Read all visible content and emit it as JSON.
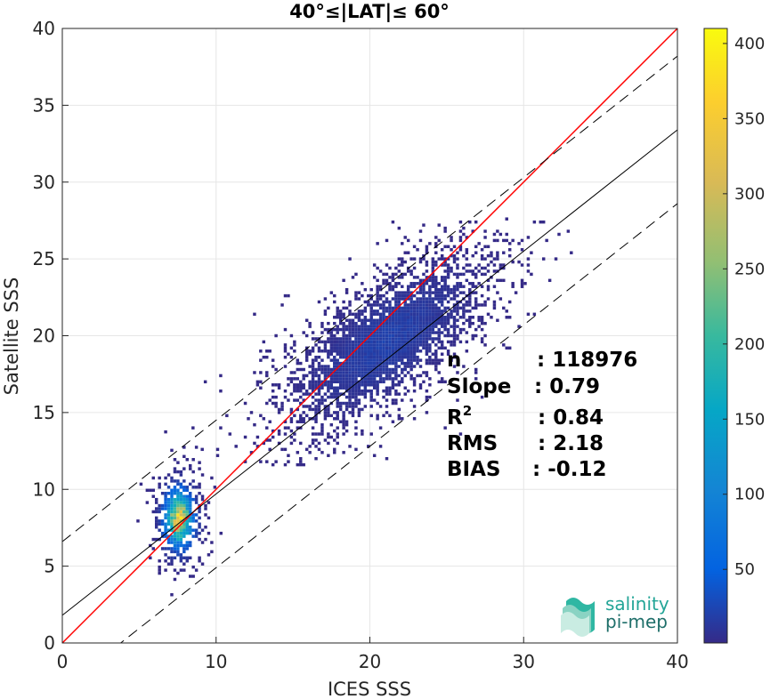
{
  "chart_data": {
    "type": "heatmap",
    "title": "40°≤|LAT|≤ 60°",
    "xlabel": "ICES SSS",
    "ylabel": "Satellite SSS",
    "xlim": [
      0,
      40
    ],
    "ylim": [
      0,
      40
    ],
    "xticks": [
      0,
      10,
      20,
      30,
      40
    ],
    "yticks": [
      0,
      5,
      10,
      15,
      20,
      25,
      30,
      35,
      40
    ],
    "grid": true,
    "colorbar": {
      "range": [
        1,
        410
      ],
      "ticks": [
        50,
        100,
        150,
        200,
        250,
        300,
        350,
        400
      ],
      "colormap": "parula"
    },
    "lines": [
      {
        "name": "one-to-one",
        "color": "#ff0000",
        "style": "solid",
        "intercept": 0,
        "slope": 1
      },
      {
        "name": "regression",
        "color": "#000000",
        "style": "solid",
        "intercept": 1.8,
        "slope": 0.79
      },
      {
        "name": "regression-plus",
        "color": "#000000",
        "style": "dashed",
        "intercept": 6.6,
        "slope": 0.79
      },
      {
        "name": "regression-minus",
        "color": "#000000",
        "style": "dashed",
        "intercept": -3.0,
        "slope": 0.79
      }
    ],
    "clusters": [
      {
        "x": 7.5,
        "y": 8.0,
        "sx": 0.9,
        "sy": 1.8,
        "peak": 410
      },
      {
        "x": 21.0,
        "y": 19.5,
        "sx": 4.0,
        "sy": 2.5,
        "peak": 25
      }
    ],
    "stats": [
      {
        "label": "n",
        "sup": "",
        "value": ": 118976"
      },
      {
        "label": "Slope",
        "sup": "",
        "value": ": 0.79"
      },
      {
        "label": "R",
        "sup": "2",
        "value": ": 0.84"
      },
      {
        "label": "RMS",
        "sup": "",
        "value": ": 2.18"
      },
      {
        "label": "BIAS",
        "sup": "",
        "value": ": -0.12"
      }
    ]
  },
  "logo": {
    "line1": "salinity",
    "line2": "pi-mep"
  }
}
